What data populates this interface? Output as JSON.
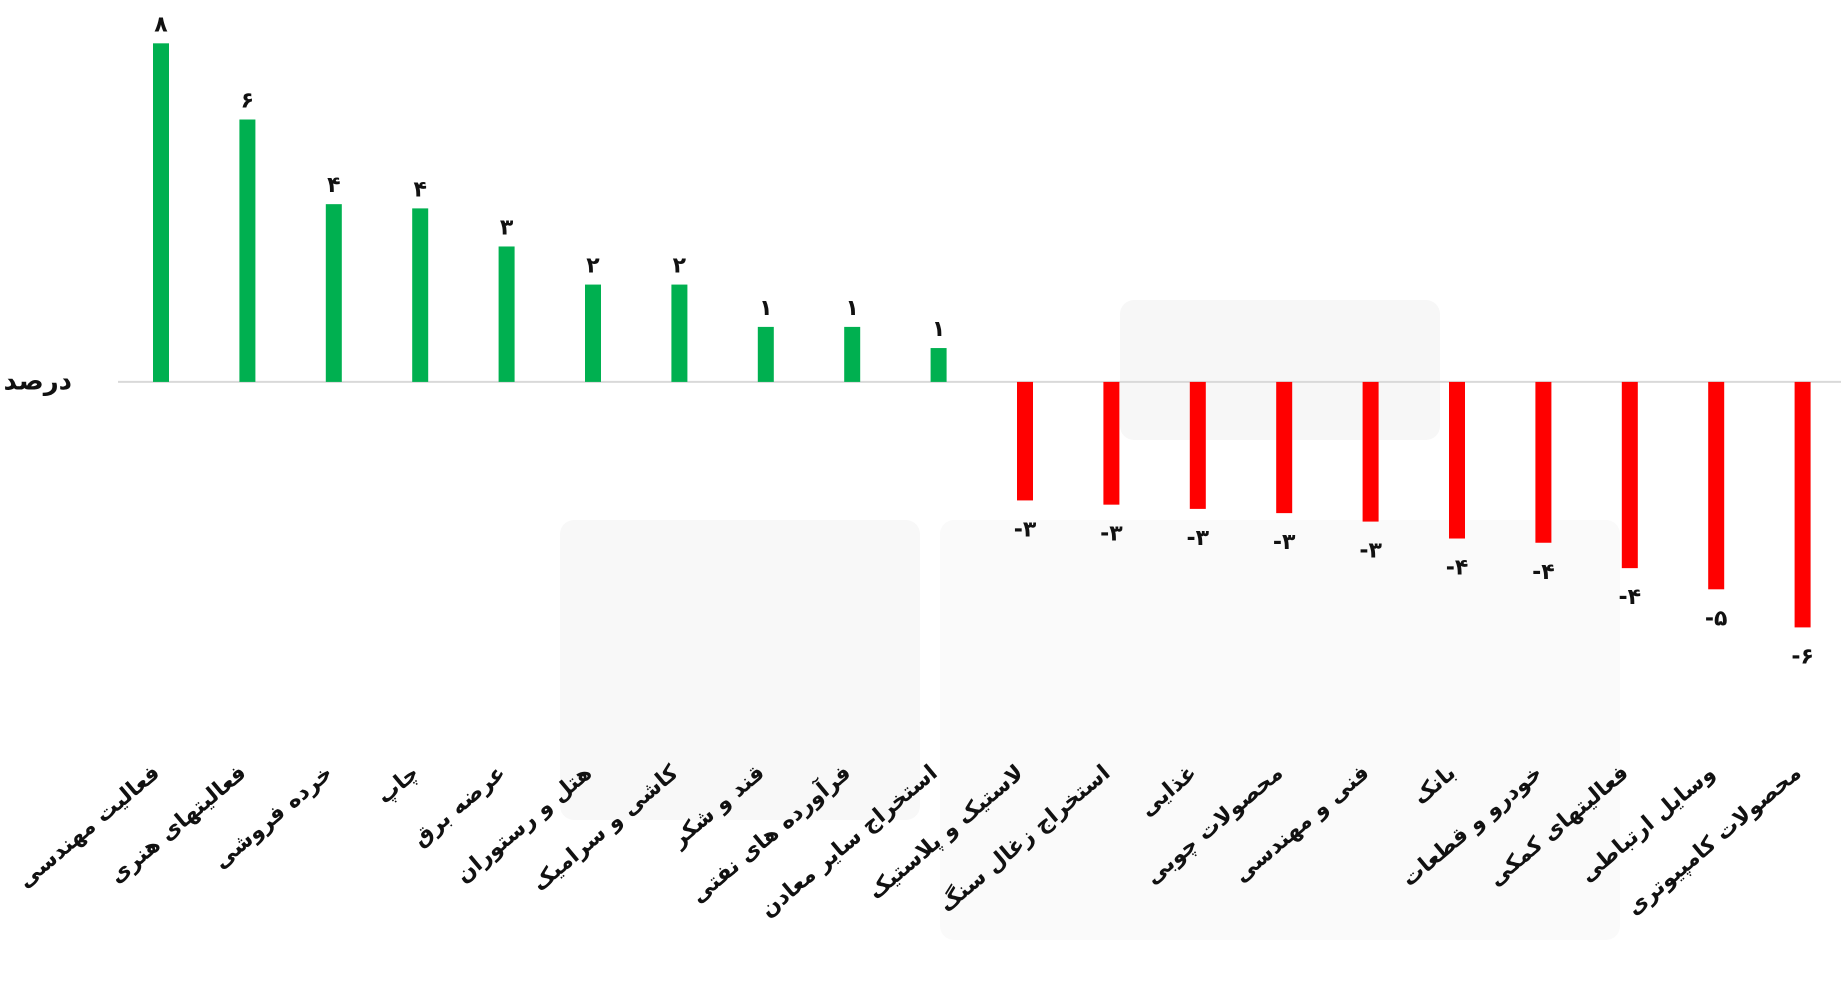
{
  "chart_data": {
    "type": "bar",
    "ylabel": "درصد",
    "categories": [
      "فعالیت مهندسی",
      "فعالیتهای هنری",
      "خرده فروشی",
      "چاپ",
      "عرضه برق",
      "هتل و رستوران",
      "کاشی و سرامیک",
      "قند و شکر",
      "فرآورده های نفتی",
      "استخراج سایر معادن",
      "لاستیک و پلاستیک",
      "استخراج زغال سنگ",
      "غذایی",
      "محصولات چوبی",
      "فنی و مهندسی",
      "بانک",
      "خودرو و قطعات",
      "فعالیتهای کمکی",
      "وسایل ارتباطی",
      "محصولات کامپیوتری"
    ],
    "values": [
      8,
      6.2,
      4.2,
      4.1,
      3.2,
      2.3,
      2.3,
      1.3,
      1.3,
      0.8,
      -2.8,
      -2.9,
      -3,
      -3.1,
      -3.3,
      -3.7,
      -3.8,
      -4.4,
      -4.9,
      -5.8
    ],
    "value_labels": [
      "۸",
      "۶",
      "۴",
      "۴",
      "۳",
      "۲",
      "۲",
      "۱",
      "۱",
      "۱",
      "-۳",
      "-۳",
      "-۳",
      "-۳",
      "-۳",
      "-۴",
      "-۴",
      "-۴",
      "-۵",
      "-۶"
    ],
    "positive_color": "#00b050",
    "negative_color": "#ff0000",
    "ylim": [
      -9.5,
      9
    ]
  }
}
